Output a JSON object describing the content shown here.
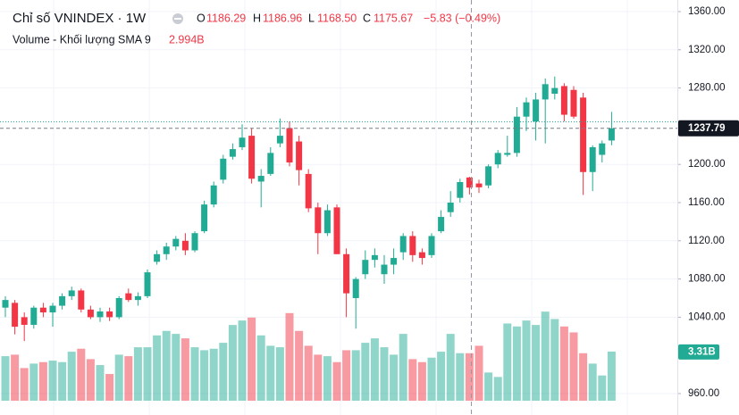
{
  "chart_data": {
    "type": "candlestick",
    "header": {
      "title": "Chỉ số VNINDEX · 1W",
      "o": "O",
      "open": "1186.29",
      "h": "H",
      "high": "1186.96",
      "l": "L",
      "low": "1168.50",
      "c": "C",
      "close": "1175.67",
      "change": "−5.83 (−0.49%)"
    },
    "volume_header": {
      "title": "Volume - Khối lượng SMA 9",
      "value": "2.994B"
    },
    "up_color": "#22ab94",
    "down_color": "#f23645",
    "open": [
      1050,
      1055,
      1040,
      1032,
      1050,
      1045,
      1052,
      1062,
      1068,
      1048,
      1040,
      1046,
      1040,
      1065,
      1058,
      1062,
      1098,
      1106,
      1114,
      1120,
      1110,
      1130,
      1158,
      1184,
      1208,
      1218,
      1230,
      1182,
      1190,
      1222,
      1238,
      1224,
      1190,
      1155,
      1128,
      1155,
      1106,
      1060,
      1085,
      1100,
      1085,
      1095,
      1108,
      1125,
      1108,
      1105,
      1130,
      1150,
      1165,
      1186.29,
      1180,
      1178,
      1200,
      1210,
      1212,
      1250,
      1245,
      1268,
      1274,
      1282,
      1278,
      1270,
      1192,
      1210,
      1225
    ],
    "high": [
      1062,
      1058,
      1045,
      1052,
      1055,
      1055,
      1065,
      1072,
      1070,
      1052,
      1050,
      1050,
      1062,
      1070,
      1066,
      1090,
      1110,
      1118,
      1125,
      1128,
      1130,
      1162,
      1182,
      1210,
      1222,
      1242,
      1238,
      1195,
      1218,
      1248,
      1245,
      1230,
      1195,
      1160,
      1158,
      1158,
      1112,
      1082,
      1110,
      1112,
      1105,
      1112,
      1128,
      1130,
      1112,
      1128,
      1152,
      1172,
      1185,
      1186.96,
      1184,
      1200,
      1215,
      1230,
      1260,
      1270,
      1275,
      1290,
      1292,
      1285,
      1282,
      1275,
      1220,
      1225,
      1255
    ],
    "low": [
      1040,
      1022,
      1015,
      1028,
      1040,
      1030,
      1048,
      1058,
      1045,
      1038,
      1035,
      1036,
      1038,
      1056,
      1052,
      1060,
      1095,
      1100,
      1110,
      1105,
      1108,
      1128,
      1155,
      1180,
      1205,
      1215,
      1180,
      1155,
      1188,
      1218,
      1198,
      1178,
      1150,
      1106,
      1125,
      1106,
      1040,
      1028,
      1080,
      1092,
      1075,
      1085,
      1100,
      1098,
      1095,
      1102,
      1128,
      1145,
      1160,
      1168.5,
      1170,
      1175,
      1196,
      1208,
      1208,
      1235,
      1225,
      1222,
      1268,
      1245,
      1248,
      1168,
      1172,
      1202,
      1220
    ],
    "close": [
      1058,
      1030,
      1032,
      1050,
      1045,
      1052,
      1062,
      1068,
      1048,
      1040,
      1046,
      1040,
      1060,
      1058,
      1062,
      1087,
      1106,
      1114,
      1122,
      1110,
      1128,
      1158,
      1178,
      1206,
      1216,
      1228,
      1185,
      1188,
      1212,
      1230,
      1202,
      1194,
      1154,
      1128,
      1152,
      1106,
      1065,
      1080,
      1100,
      1105,
      1095,
      1102,
      1125,
      1105,
      1102,
      1125,
      1145,
      1160,
      1181.5,
      1175.67,
      1176,
      1198,
      1212,
      1212,
      1250,
      1265,
      1268,
      1284,
      1280,
      1252,
      1250,
      1192,
      1218,
      1222,
      1237.79
    ],
    "volume": [
      3.0,
      3.1,
      2.2,
      2.5,
      2.6,
      2.7,
      2.6,
      3.3,
      3.5,
      2.8,
      2.4,
      1.8,
      3.1,
      3.0,
      3.6,
      3.6,
      4.4,
      4.7,
      4.5,
      4.2,
      3.6,
      3.4,
      3.5,
      3.9,
      5.1,
      5.4,
      5.6,
      4.4,
      3.7,
      3.6,
      5.9,
      4.7,
      3.7,
      3.1,
      3.0,
      2.6,
      3.4,
      3.4,
      3.9,
      4.2,
      3.6,
      3.1,
      4.5,
      2.8,
      2.6,
      2.9,
      3.3,
      4.5,
      3.2,
      3.2,
      3.7,
      1.9,
      1.6,
      5.2,
      5.0,
      5.4,
      5.1,
      6.0,
      5.5,
      5.0,
      4.6,
      3.2,
      2.5,
      1.7,
      3.31
    ],
    "volume_last_label": "3.31B",
    "ylim": [
      960,
      1360
    ],
    "yticks": [
      {
        "value": 1360,
        "label": "1360.00"
      },
      {
        "value": 1320,
        "label": "1320.00"
      },
      {
        "value": 1280,
        "label": "1280.00"
      },
      {
        "value": 1200,
        "label": "1200.00"
      },
      {
        "value": 1160,
        "label": "1160.00"
      },
      {
        "value": 1120,
        "label": "1120.00"
      },
      {
        "value": 1080,
        "label": "1080.00"
      },
      {
        "value": 1040,
        "label": "1040.00"
      },
      {
        "value": 960,
        "label": "960.00"
      }
    ],
    "y2lim": [
      0,
      26.2
    ],
    "grid": true
  }
}
